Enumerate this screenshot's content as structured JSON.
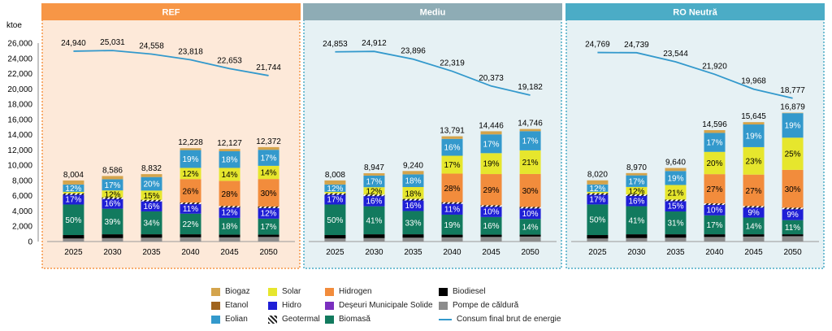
{
  "chart_data": {
    "type": "bar",
    "y_unit": "ktoe",
    "ylim": [
      0,
      26000
    ],
    "y_ticks": [
      "0",
      "2,000",
      "4,000",
      "6,000",
      "8,000",
      "10,000",
      "12,000",
      "14,000",
      "16,000",
      "18,000",
      "20,000",
      "22,000",
      "24,000",
      "26,000"
    ],
    "categories": [
      "2025",
      "2030",
      "2035",
      "2040",
      "2045",
      "2050"
    ],
    "colors": {
      "Biogaz": "#d4a44c",
      "Etanol": "#a0641e",
      "Eolian": "#3399cc",
      "Solar": "#e6e62d",
      "Hidro": "#1f1fd6",
      "Geotermal": "#222222",
      "Hidrogen": "#f28c3c",
      "Deseuri": "#7a2fbf",
      "Biomasa": "#127a5e",
      "Biodiesel": "#000000",
      "Pompe": "#8c8c8c",
      "line": "#3399cc"
    },
    "panels": [
      {
        "title": "REF",
        "header_color": "#f79646",
        "bg": "#fde9d9",
        "border": "#f79646",
        "line": [
          24940,
          25031,
          24558,
          23818,
          22653,
          21744
        ],
        "line_labels": [
          "24,940",
          "25,031",
          "24,558",
          "23,818",
          "22,653",
          "21,744"
        ],
        "totals": [
          8004,
          8586,
          8832,
          12228,
          12127,
          12372
        ],
        "total_labels": [
          "8,004",
          "8,586",
          "8,832",
          "12,228",
          "12,127",
          "12,372"
        ],
        "segments": {
          "Pompe": [
            400,
            450,
            500,
            550,
            550,
            600
          ],
          "Biodiesel": [
            450,
            500,
            450,
            400,
            350,
            300
          ],
          "Biomasa": [
            4000,
            3350,
            3000,
            2700,
            2200,
            2100
          ],
          "Hidro": [
            1360,
            1370,
            1410,
            1350,
            1450,
            1480
          ],
          "Hidrogen": [
            0,
            0,
            0,
            3180,
            3400,
            3710
          ],
          "Solar": [
            300,
            1030,
            1320,
            1470,
            1700,
            1730
          ],
          "Eolian": [
            960,
            1460,
            1770,
            2330,
            2180,
            2100
          ],
          "Biogaz": [
            534,
            426,
            382,
            248,
            297,
            352
          ]
        },
        "labels": {
          "Biomasa": [
            "50%",
            "39%",
            "34%",
            "22%",
            "18%",
            "17%"
          ],
          "Hidro": [
            "17%",
            "16%",
            "16%",
            "11%",
            "12%",
            "12%"
          ],
          "Hidrogen": [
            "",
            "",
            "",
            "26%",
            "28%",
            "30%"
          ],
          "Solar": [
            "",
            "12%",
            "15%",
            "12%",
            "14%",
            "14%"
          ],
          "Eolian": [
            "12%",
            "17%",
            "20%",
            "19%",
            "18%",
            "17%"
          ]
        }
      },
      {
        "title": "Mediu",
        "header_color": "#8eacb5",
        "bg": "#e6f1f4",
        "border": "#4bacc6",
        "line": [
          24853,
          24912,
          23896,
          22319,
          20373,
          19182
        ],
        "line_labels": [
          "24,853",
          "24,912",
          "23,896",
          "22,319",
          "20,373",
          "19,182"
        ],
        "totals": [
          8008,
          8947,
          9240,
          13791,
          14446,
          14746
        ],
        "total_labels": [
          "8,008",
          "8,947",
          "9,240",
          "13,791",
          "14,446",
          "14,746"
        ],
        "segments": {
          "Pompe": [
            400,
            450,
            500,
            550,
            600,
            650
          ],
          "Biodiesel": [
            450,
            500,
            450,
            350,
            300,
            250
          ],
          "Biomasa": [
            4000,
            3670,
            3050,
            2620,
            2310,
            2060
          ],
          "Hidro": [
            1360,
            1430,
            1480,
            1520,
            1440,
            1470
          ],
          "Hidrogen": [
            0,
            0,
            0,
            3860,
            4190,
            4420
          ],
          "Solar": [
            300,
            1070,
            1660,
            2340,
            2740,
            3100
          ],
          "Eolian": [
            960,
            1520,
            1660,
            2210,
            2460,
            2510
          ],
          "Biogaz": [
            538,
            307,
            440,
            341,
            406,
            286
          ]
        },
        "labels": {
          "Biomasa": [
            "50%",
            "41%",
            "33%",
            "19%",
            "16%",
            "14%"
          ],
          "Hidro": [
            "17%",
            "16%",
            "16%",
            "11%",
            "10%",
            "10%"
          ],
          "Hidrogen": [
            "",
            "",
            "",
            "28%",
            "29%",
            "30%"
          ],
          "Solar": [
            "",
            "12%",
            "18%",
            "17%",
            "19%",
            "21%"
          ],
          "Eolian": [
            "12%",
            "17%",
            "18%",
            "16%",
            "17%",
            "17%"
          ]
        }
      },
      {
        "title": "RO Neutră",
        "header_color": "#4bacc6",
        "bg": "#e6f1f4",
        "border": "#4bacc6",
        "line": [
          24769,
          24739,
          23544,
          21920,
          19968,
          18777
        ],
        "line_labels": [
          "24,769",
          "24,739",
          "23,544",
          "21,920",
          "19,968",
          "18,777"
        ],
        "totals": [
          8020,
          8970,
          9640,
          14596,
          15645,
          16879
        ],
        "total_labels": [
          "8,020",
          "8,970",
          "9,640",
          "14,596",
          "15,645",
          "16,879"
        ],
        "segments": {
          "Pompe": [
            400,
            450,
            500,
            600,
            650,
            700
          ],
          "Biodiesel": [
            450,
            500,
            450,
            350,
            300,
            250
          ],
          "Biomasa": [
            4010,
            3680,
            2990,
            2480,
            2190,
            1860
          ],
          "Hidro": [
            1360,
            1440,
            1450,
            1460,
            1410,
            1520
          ],
          "Hidrogen": [
            0,
            0,
            0,
            3940,
            4220,
            5060
          ],
          "Solar": [
            300,
            1080,
            2020,
            2920,
            3600,
            4220
          ],
          "Eolian": [
            960,
            1520,
            1830,
            2480,
            2970,
            3210
          ],
          "Biogaz": [
            540,
            300,
            400,
            366,
            305,
            59
          ]
        },
        "labels": {
          "Biomasa": [
            "50%",
            "41%",
            "31%",
            "17%",
            "14%",
            "11%"
          ],
          "Hidro": [
            "17%",
            "16%",
            "15%",
            "10%",
            "9%",
            "9%"
          ],
          "Hidrogen": [
            "",
            "",
            "",
            "27%",
            "27%",
            "30%"
          ],
          "Solar": [
            "",
            "12%",
            "21%",
            "20%",
            "23%",
            "25%"
          ],
          "Eolian": [
            "12%",
            "17%",
            "19%",
            "17%",
            "19%",
            "19%"
          ]
        }
      }
    ],
    "legend": [
      {
        "key": "Biogaz",
        "label": "Biogaz",
        "kind": "swatch"
      },
      {
        "key": "Solar",
        "label": "Solar",
        "kind": "swatch"
      },
      {
        "key": "Hidrogen",
        "label": "Hidrogen",
        "kind": "swatch"
      },
      {
        "key": "Biodiesel",
        "label": "Biodiesel",
        "kind": "swatch"
      },
      {
        "key": "Etanol",
        "label": "Etanol",
        "kind": "swatch"
      },
      {
        "key": "Hidro",
        "label": "Hidro",
        "kind": "swatch"
      },
      {
        "key": "Deseuri",
        "label": "Deșeuri Municipale Solide",
        "kind": "swatch"
      },
      {
        "key": "Pompe",
        "label": "Pompe de căldură",
        "kind": "swatch"
      },
      {
        "key": "Eolian",
        "label": "Eolian",
        "kind": "swatch"
      },
      {
        "key": "Geotermal",
        "label": "Geotermal",
        "kind": "hatch"
      },
      {
        "key": "Biomasa",
        "label": "Biomasă",
        "kind": "swatch"
      },
      {
        "key": "line",
        "label": "Consum final brut de energie",
        "kind": "line"
      }
    ]
  }
}
